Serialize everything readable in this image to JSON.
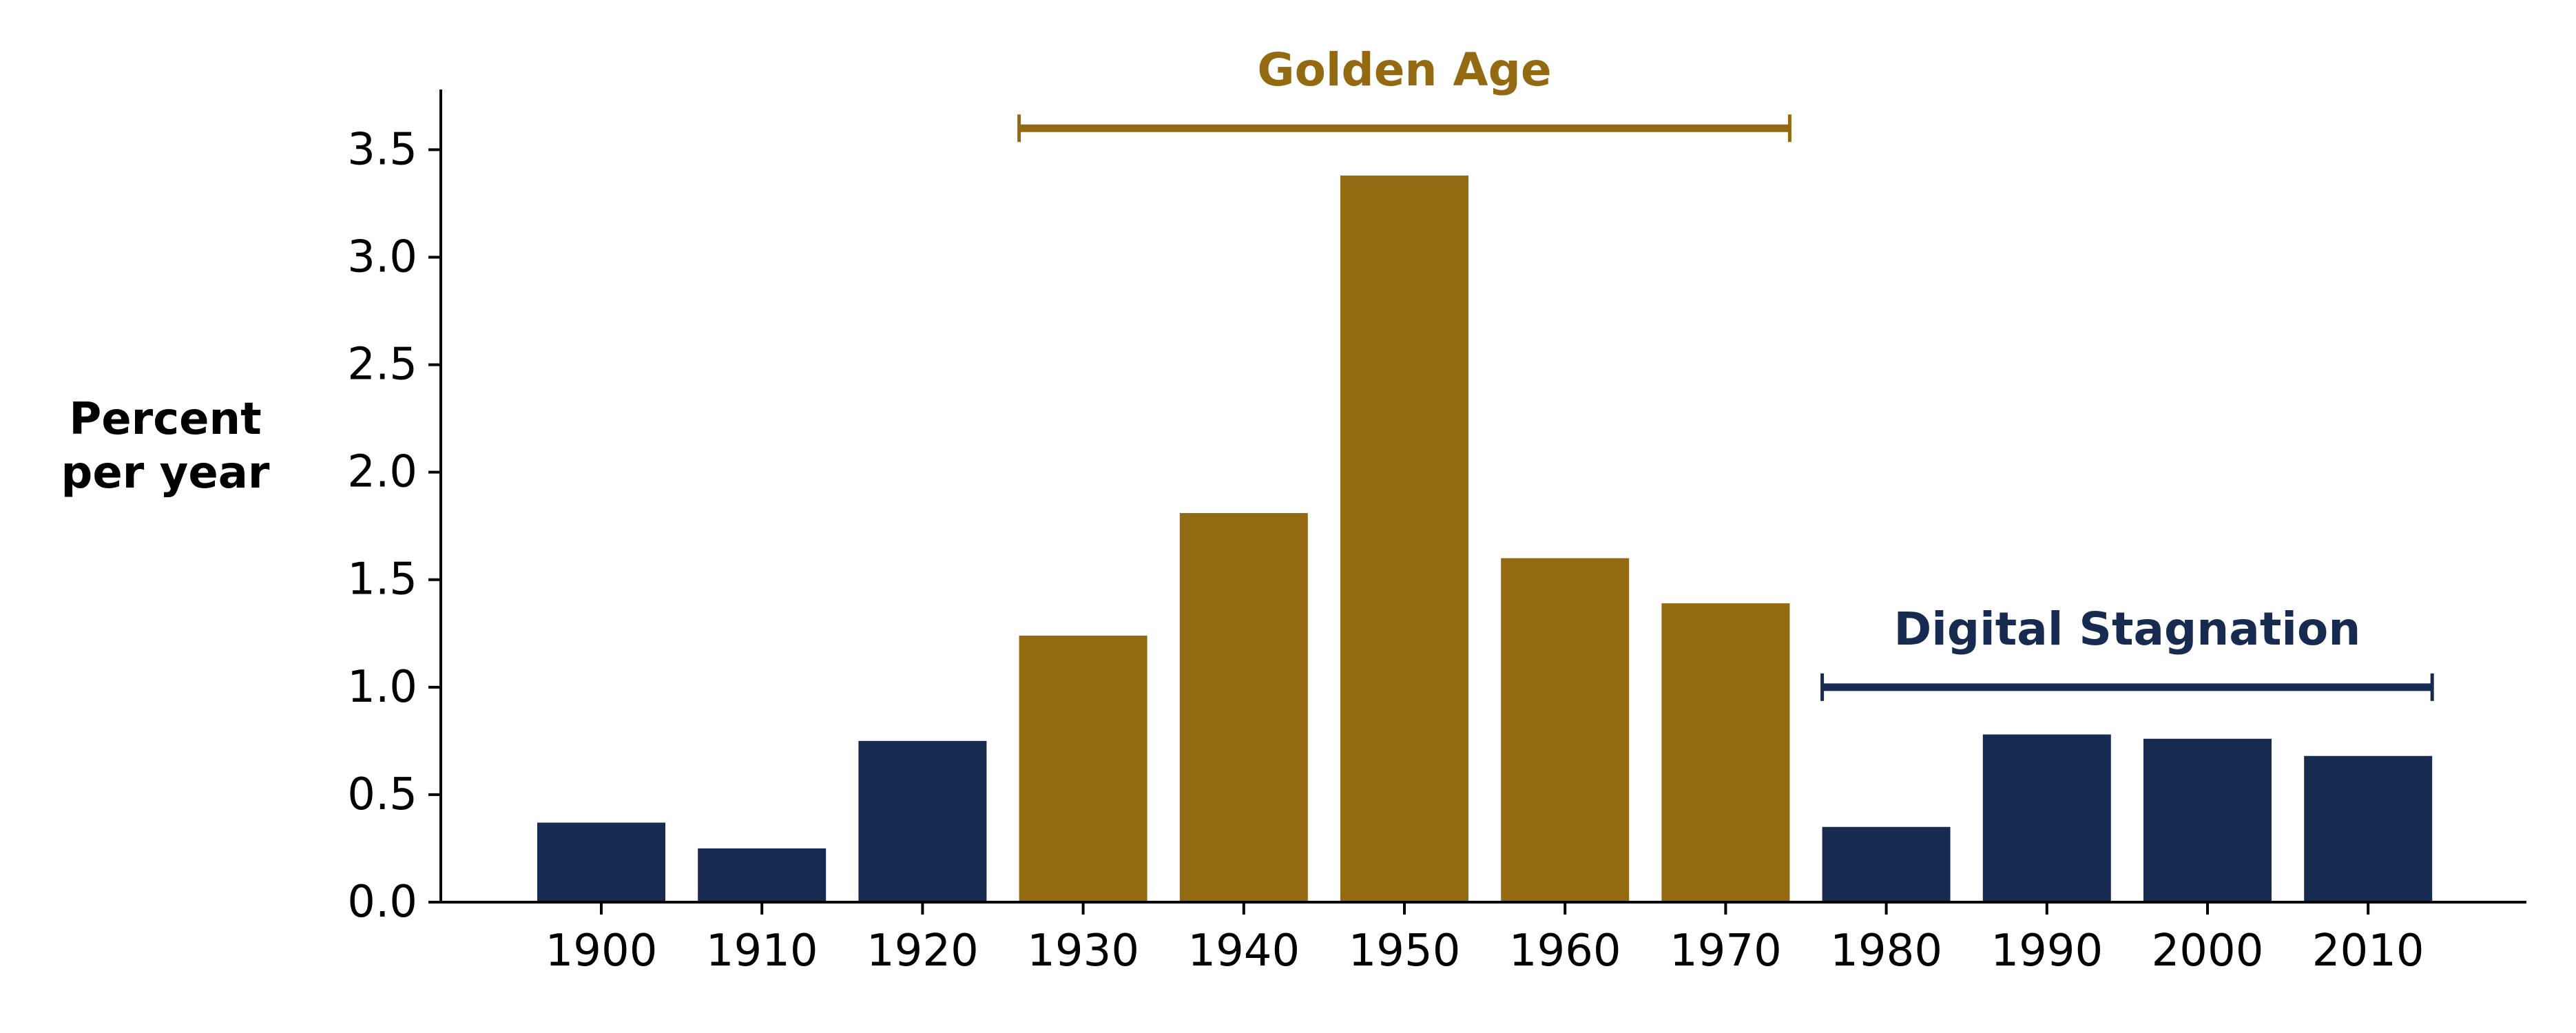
{
  "chart_data": {
    "type": "bar",
    "title": "",
    "xlabel": "",
    "ylabel": [
      "Percent",
      "per year"
    ],
    "categories": [
      "1900",
      "1910",
      "1920",
      "1930",
      "1940",
      "1950",
      "1960",
      "1970",
      "1980",
      "1990",
      "2000",
      "2010"
    ],
    "values": [
      0.37,
      0.25,
      0.75,
      1.24,
      1.81,
      3.38,
      1.6,
      1.39,
      0.35,
      0.78,
      0.76,
      0.68
    ],
    "ylim": [
      0,
      3.78
    ],
    "yticks": [
      "0.0",
      "0.5",
      "1.0",
      "1.5",
      "2.0",
      "2.5",
      "3.0",
      "3.5"
    ],
    "grid": false,
    "bar_colors": [
      "#172b51",
      "#172b51",
      "#172b51",
      "#936a12",
      "#936a12",
      "#936a12",
      "#936a12",
      "#936a12",
      "#172b51",
      "#172b51",
      "#172b51",
      "#172b51"
    ],
    "annotations": [
      {
        "label": "Golden Age",
        "from": "1930",
        "to": "1970",
        "y": 3.6,
        "color": "#936a12"
      },
      {
        "label": "Digital Stagnation",
        "from": "1980",
        "to": "2010",
        "y": 1.0,
        "color": "#172b51"
      }
    ]
  }
}
